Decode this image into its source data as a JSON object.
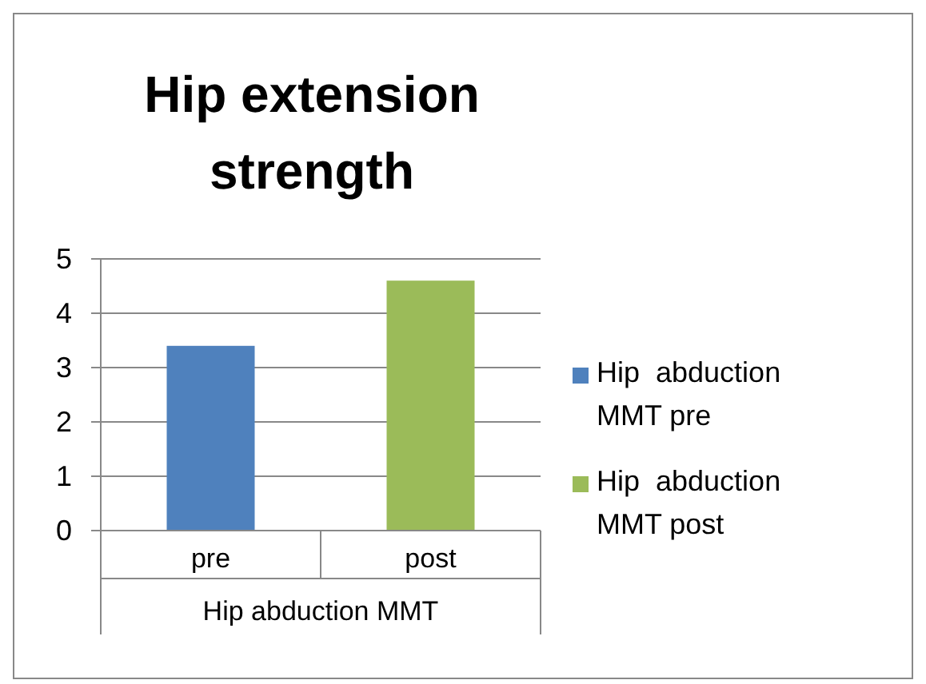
{
  "chart_data": {
    "type": "bar",
    "title": "Hip extension strength",
    "xlabel": "Hip abduction MMT",
    "categories": [
      "pre",
      "post"
    ],
    "series": [
      {
        "name": "Hip  abduction MMT pre",
        "color": "#4f81bd",
        "values": [
          3.4,
          null
        ]
      },
      {
        "name": "Hip  abduction MMT post",
        "color": "#9bbb59",
        "values": [
          null,
          4.6
        ]
      }
    ],
    "ylim": [
      0,
      5
    ],
    "yticks": [
      0,
      1,
      2,
      3,
      4,
      5
    ],
    "grid": "y",
    "legend": "right"
  }
}
